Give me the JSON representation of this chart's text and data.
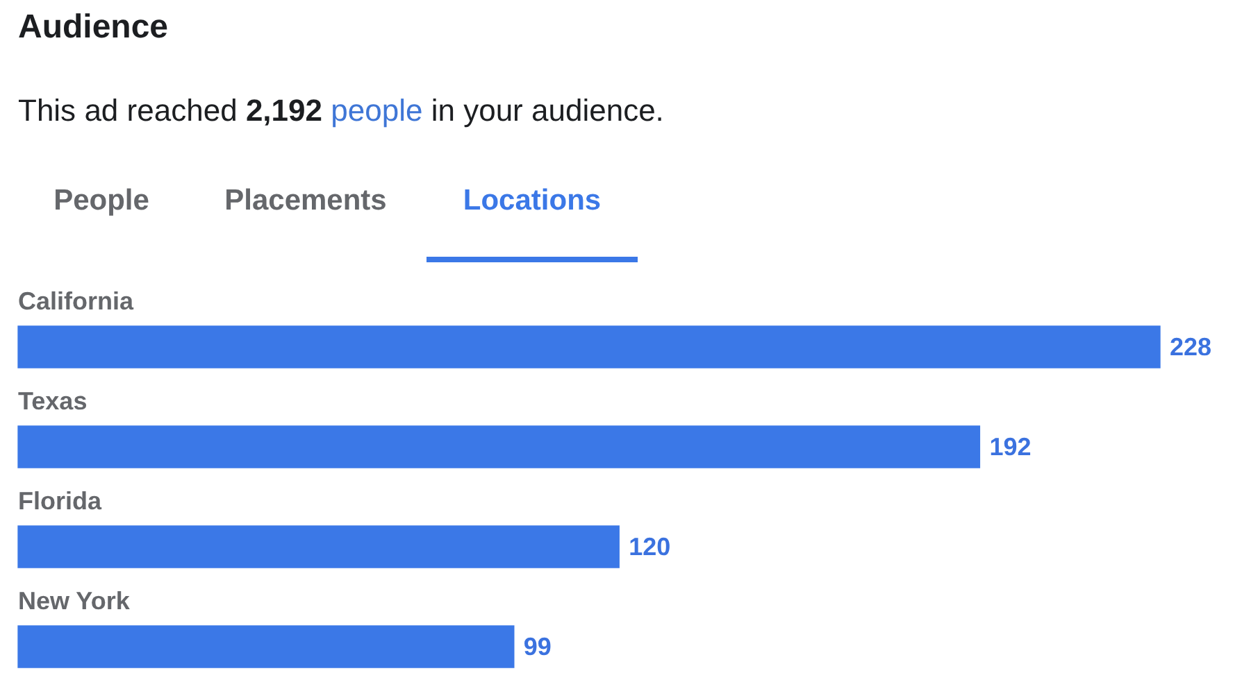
{
  "chart_data": {
    "type": "bar",
    "orientation": "horizontal",
    "title": "Audience",
    "subtitle": "This ad reached 2,192 people in your audience.",
    "annotations": [
      "People",
      "Placements",
      "Locations"
    ],
    "categories": [
      "California",
      "Texas",
      "Florida",
      "New York"
    ],
    "values": [
      228,
      192,
      120,
      99
    ],
    "color": "#3b78e7",
    "data_labels": true
  }
}
